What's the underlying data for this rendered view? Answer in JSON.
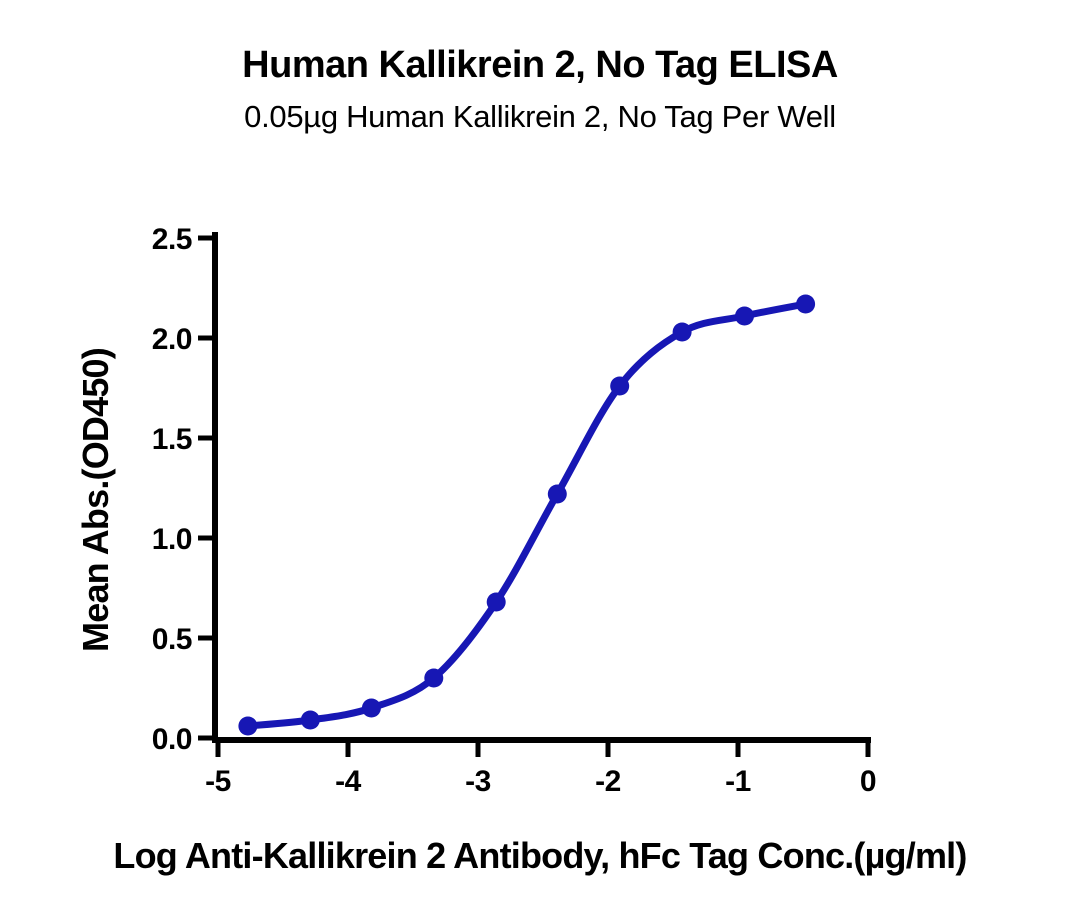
{
  "chart_data": {
    "type": "line",
    "title": "Human Kallikrein 2, No Tag ELISA",
    "subtitle": "0.05µg Human Kallikrein 2, No Tag Per Well",
    "xlabel": "Log Anti-Kallikrein 2 Antibody, hFc Tag Conc.(µg/ml)",
    "ylabel": "Mean Abs.(OD450)",
    "xlim": [
      -5,
      0
    ],
    "ylim": [
      0,
      2.5
    ],
    "x_ticks": [
      -5,
      -4,
      -3,
      -2,
      -1,
      0
    ],
    "x_tick_labels": [
      "-5",
      "-4",
      "-3",
      "-2",
      "-1",
      "0"
    ],
    "y_ticks": [
      0,
      0.5,
      1,
      1.5,
      2,
      2.5
    ],
    "y_tick_labels": [
      "0.0",
      "0.5",
      "1.0",
      "1.5",
      "2.0",
      "2.5"
    ],
    "grid": false,
    "legend": "none",
    "curve_style": "sigmoid-4pl-fit",
    "series": [
      {
        "name": "Anti-Kallikrein 2 Antibody, hFc Tag",
        "color": "#1717b4",
        "marker": "circle",
        "x": [
          -4.77,
          -4.29,
          -3.82,
          -3.34,
          -2.86,
          -2.39,
          -1.91,
          -1.43,
          -0.95,
          -0.48
        ],
        "y": [
          0.06,
          0.09,
          0.15,
          0.3,
          0.68,
          1.22,
          1.76,
          2.03,
          2.11,
          2.17
        ]
      }
    ]
  },
  "colors": {
    "background": "#ffffff",
    "axis": "#000000",
    "text": "#000000",
    "curve": "#1717b4"
  }
}
